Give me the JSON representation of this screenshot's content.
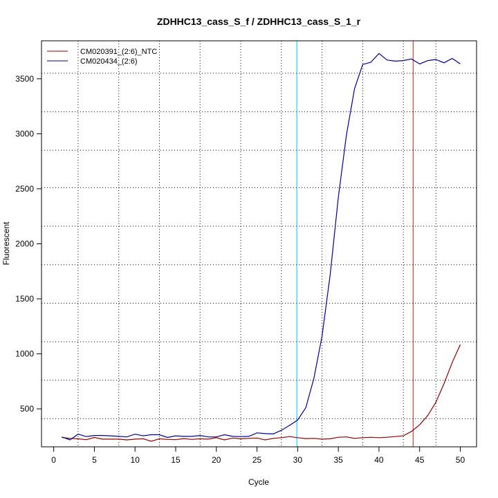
{
  "chart_data": {
    "type": "line",
    "title": "ZDHHC13_cass_S_f / ZDHHC13_cass_S_1_r",
    "xlabel": "Cycle",
    "ylabel": "Fluorescent",
    "xlim": [
      -1.5,
      52
    ],
    "ylim": [
      155,
      3845
    ],
    "xticks": [
      0,
      5,
      10,
      15,
      20,
      25,
      30,
      35,
      40,
      45,
      50
    ],
    "yticks": [
      500,
      1000,
      1500,
      2000,
      2500,
      3000,
      3500
    ],
    "x_dotted_gridlines": [
      3,
      8,
      13,
      18,
      23,
      28,
      33,
      38,
      43,
      47
    ],
    "y_dotted_gridlines": [
      410,
      760,
      1110,
      1460,
      1810,
      2160,
      2510,
      2850,
      3200,
      3550
    ],
    "threshold_cycle_lines": [
      {
        "x": 29.9,
        "color": "#00bfff"
      },
      {
        "x": 44.2,
        "color": "#b22222"
      }
    ],
    "legend_position": "top-left",
    "series": [
      {
        "name": "CM020391_(2:6)_NTC",
        "color": "#8b0000",
        "x": [
          1,
          2,
          3,
          4,
          5,
          6,
          7,
          8,
          9,
          10,
          11,
          12,
          13,
          14,
          15,
          16,
          17,
          18,
          19,
          20,
          21,
          22,
          23,
          24,
          25,
          26,
          27,
          28,
          29,
          30,
          31,
          32,
          33,
          34,
          35,
          36,
          37,
          38,
          39,
          40,
          41,
          42,
          43,
          44,
          45,
          46,
          47,
          48,
          49,
          50
        ],
        "values": [
          240,
          232,
          228,
          220,
          240,
          225,
          225,
          225,
          218,
          225,
          228,
          205,
          228,
          222,
          220,
          230,
          222,
          228,
          225,
          238,
          218,
          235,
          228,
          232,
          235,
          218,
          232,
          238,
          248,
          238,
          230,
          232,
          225,
          228,
          242,
          245,
          232,
          238,
          242,
          238,
          242,
          248,
          255,
          295,
          355,
          440,
          560,
          730,
          920,
          1085
        ]
      },
      {
        "name": "CM020434_(2:6)",
        "color": "#00008b",
        "x": [
          1,
          2,
          3,
          4,
          5,
          6,
          7,
          8,
          9,
          10,
          11,
          12,
          13,
          14,
          15,
          16,
          17,
          18,
          19,
          20,
          21,
          22,
          23,
          24,
          25,
          26,
          27,
          28,
          29,
          30,
          31,
          32,
          33,
          34,
          35,
          36,
          37,
          38,
          39,
          40,
          41,
          42,
          43,
          44,
          45,
          46,
          47,
          48,
          49,
          50
        ],
        "values": [
          245,
          218,
          270,
          248,
          258,
          258,
          255,
          250,
          245,
          270,
          255,
          265,
          265,
          240,
          255,
          250,
          250,
          258,
          245,
          245,
          265,
          250,
          248,
          250,
          282,
          275,
          272,
          305,
          350,
          398,
          510,
          780,
          1160,
          1720,
          2420,
          2990,
          3410,
          3630,
          3650,
          3730,
          3670,
          3660,
          3665,
          3680,
          3635,
          3665,
          3675,
          3645,
          3685,
          3635
        ]
      }
    ]
  }
}
